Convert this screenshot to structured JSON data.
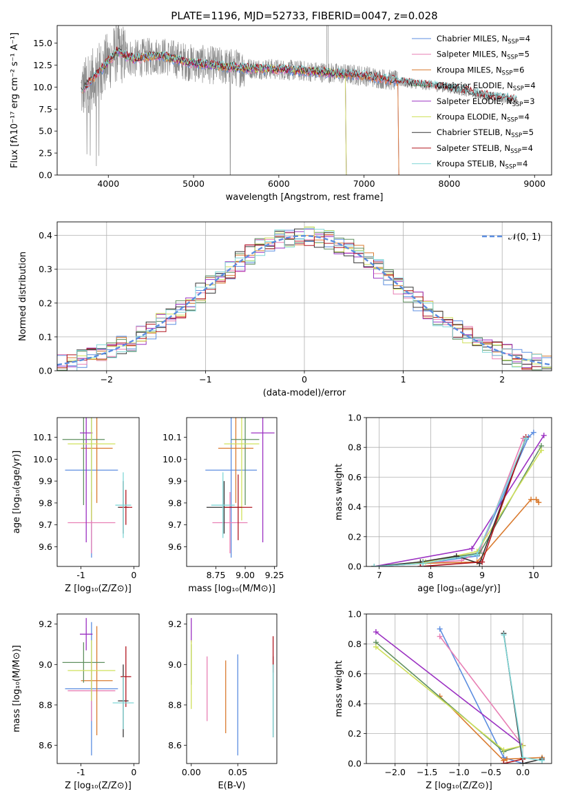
{
  "colors": {
    "Chabrier MILES": "#5b8de0",
    "Salpeter MILES": "#e87fb4",
    "Kroupa MILES": "#d97a2e",
    "Chabrier ELODIE": "#5f8f5f",
    "Salpeter ELODIE": "#9b30c2",
    "Kroupa ELODIE": "#cfe05a",
    "Chabrier STELIB": "#333333",
    "Salpeter STELIB": "#b0141e",
    "Kroupa STELIB": "#7fd6d6"
  },
  "chart_data": [
    {
      "id": "spectrum",
      "type": "line",
      "title": "PLATE=1196, MJD=52733, FIBERID=0047, z=0.028",
      "xlabel": "wavelength [Angstrom, rest frame]",
      "ylabel": "Flux [fλ10⁻¹⁷ erg cm⁻² s⁻¹ A⁻¹]",
      "xlim": [
        3400,
        9200
      ],
      "ylim": [
        0,
        17
      ],
      "xticks": [
        4000,
        5000,
        6000,
        7000,
        8000,
        9000
      ],
      "yticks": [
        0.0,
        2.5,
        5.0,
        7.5,
        10.0,
        12.5,
        15.0
      ],
      "legend": [
        {
          "label": "Chabrier MILES, N",
          "sub": "SSP",
          "eq": "=4",
          "key": "Chabrier MILES"
        },
        {
          "label": "Salpeter MILES, N",
          "sub": "SSP",
          "eq": "=5",
          "key": "Salpeter MILES"
        },
        {
          "label": "Kroupa MILES, N",
          "sub": "SSP",
          "eq": "=6",
          "key": "Kroupa MILES"
        },
        {
          "label": "Chabrier ELODIE, N",
          "sub": "SSP",
          "eq": "=4",
          "key": "Chabrier ELODIE"
        },
        {
          "label": "Salpeter ELODIE, N",
          "sub": "SSP",
          "eq": "=3",
          "key": "Salpeter ELODIE"
        },
        {
          "label": "Kroupa ELODIE, N",
          "sub": "SSP",
          "eq": "=4",
          "key": "Kroupa ELODIE"
        },
        {
          "label": "Chabrier STELIB, N",
          "sub": "SSP",
          "eq": "=5",
          "key": "Chabrier STELIB"
        },
        {
          "label": "Salpeter STELIB, N",
          "sub": "SSP",
          "eq": "=4",
          "key": "Salpeter STELIB"
        },
        {
          "label": "Kroupa STELIB, N",
          "sub": "SSP",
          "eq": "=4",
          "key": "Kroupa STELIB"
        }
      ],
      "data_range": [
        3680,
        8800
      ],
      "model_ranges": {
        "MILES": [
          3700,
          7420
        ],
        "ELODIE": [
          3900,
          6800
        ],
        "STELIB": [
          3680,
          8800
        ]
      },
      "continuum": [
        [
          3680,
          9.5
        ],
        [
          3900,
          11.8
        ],
        [
          4100,
          14.0
        ],
        [
          4300,
          13.2
        ],
        [
          4600,
          13.6
        ],
        [
          5000,
          12.7
        ],
        [
          5500,
          12.2
        ],
        [
          6000,
          12.0
        ],
        [
          6500,
          11.7
        ],
        [
          7000,
          11.3
        ],
        [
          7500,
          10.5
        ],
        [
          8000,
          9.9
        ],
        [
          8500,
          8.9
        ],
        [
          8800,
          8.6
        ]
      ]
    },
    {
      "id": "residuals",
      "type": "line",
      "title": "",
      "xlabel": "(data-model)/error",
      "ylabel": "Normed distribution",
      "xlim": [
        -2.5,
        2.5
      ],
      "ylim": [
        0,
        0.44
      ],
      "xticks": [
        -2,
        -1,
        0,
        1,
        2
      ],
      "xtick_labels": [
        "−2",
        "−1",
        "0",
        "1",
        "2"
      ],
      "yticks": [
        0.0,
        0.1,
        0.2,
        0.3,
        0.4
      ],
      "legend": "𝒩(0, 1)",
      "gaussian": {
        "mu": 0,
        "sigma": 1
      },
      "bin_width": 0.1
    },
    {
      "id": "age-vs-Z",
      "type": "scatter",
      "xlabel": "Z [log₁₀(Z/Z⊙)]",
      "ylabel": "age  [log₁₀(age/yr)]",
      "xlim": [
        -1.45,
        0.1
      ],
      "ylim": [
        9.51,
        10.19
      ],
      "xticks": [
        -1,
        0
      ],
      "yticks": [
        9.6,
        9.7,
        9.8,
        9.9,
        10.0,
        10.1
      ],
      "points": [
        {
          "model": "Chabrier MILES",
          "x": -0.8,
          "y": 9.95,
          "xerr": 0.5,
          "yerr": 0.4
        },
        {
          "model": "Salpeter MILES",
          "x": -0.8,
          "y": 9.71,
          "xerr": 0.45,
          "yerr": 0.14
        },
        {
          "model": "Kroupa MILES",
          "x": -0.7,
          "y": 10.05,
          "xerr": 0.3,
          "yerr": 0.25
        },
        {
          "model": "Chabrier ELODIE",
          "x": -0.95,
          "y": 10.09,
          "xerr": 0.4,
          "yerr": 0.3
        },
        {
          "model": "Salpeter ELODIE",
          "x": -0.9,
          "y": 10.12,
          "xerr": 0.12,
          "yerr": 0.5
        },
        {
          "model": "Kroupa ELODIE",
          "x": -0.8,
          "y": 10.07,
          "xerr": 0.45,
          "yerr": 0.35
        },
        {
          "model": "Chabrier STELIB",
          "x": -0.2,
          "y": 9.78,
          "xerr": 0.1,
          "yerr": 0.12
        },
        {
          "model": "Salpeter STELIB",
          "x": -0.15,
          "y": 9.78,
          "xerr": 0.12,
          "yerr": 0.08
        },
        {
          "model": "Kroupa STELIB",
          "x": -0.2,
          "y": 9.79,
          "xerr": 0.15,
          "yerr": 0.15
        }
      ]
    },
    {
      "id": "age-vs-mass",
      "type": "scatter",
      "xlabel": "mass [log₁₀(M/M⊙)]",
      "ylabel": "",
      "xlim": [
        8.5,
        9.27
      ],
      "ylim": [
        9.51,
        10.19
      ],
      "xticks": [
        8.75,
        9.0,
        9.25
      ],
      "xtick_labels": [
        "8.75",
        "9.00",
        "9.25"
      ],
      "yticks": [
        9.6,
        9.7,
        9.8,
        9.9,
        10.0,
        10.1
      ],
      "points": [
        {
          "model": "Chabrier MILES",
          "x": 8.88,
          "y": 9.95,
          "xerr": 0.22,
          "yerr": 0.4
        },
        {
          "model": "Salpeter MILES",
          "x": 8.87,
          "y": 9.71,
          "xerr": 0.15,
          "yerr": 0.14
        },
        {
          "model": "Kroupa MILES",
          "x": 8.92,
          "y": 10.05,
          "xerr": 0.15,
          "yerr": 0.25
        },
        {
          "model": "Chabrier ELODIE",
          "x": 9.0,
          "y": 10.09,
          "xerr": 0.12,
          "yerr": 0.3
        },
        {
          "model": "Salpeter ELODIE",
          "x": 9.15,
          "y": 10.12,
          "xerr": 0.1,
          "yerr": 0.5
        },
        {
          "model": "Kroupa ELODIE",
          "x": 8.97,
          "y": 10.07,
          "xerr": 0.15,
          "yerr": 0.35
        },
        {
          "model": "Chabrier STELIB",
          "x": 8.82,
          "y": 9.78,
          "xerr": 0.15,
          "yerr": 0.12
        },
        {
          "model": "Salpeter STELIB",
          "x": 8.94,
          "y": 9.78,
          "xerr": 0.12,
          "yerr": 0.15
        },
        {
          "model": "Kroupa STELIB",
          "x": 8.81,
          "y": 9.79,
          "xerr": 0.1,
          "yerr": 0.15
        }
      ]
    },
    {
      "id": "weight-vs-age",
      "type": "line",
      "xlabel": "age  [log₁₀(age/yr)]",
      "ylabel": "mass weight",
      "xlim": [
        6.75,
        10.35
      ],
      "ylim": [
        0,
        1
      ],
      "xticks": [
        7,
        8,
        9,
        10
      ],
      "yticks": [
        0.0,
        0.2,
        0.4,
        0.6,
        0.8,
        1.0
      ],
      "series": [
        {
          "model": "Chabrier MILES",
          "x": [
            6.9,
            7.85,
            8.9,
            9.9,
            10.0
          ],
          "y": [
            0.0,
            0.02,
            0.07,
            0.87,
            0.9
          ]
        },
        {
          "model": "Salpeter MILES",
          "x": [
            6.9,
            7.8,
            8.6,
            8.95,
            9.8
          ],
          "y": [
            0.0,
            0.02,
            0.04,
            0.1,
            0.86
          ]
        },
        {
          "model": "Kroupa MILES",
          "x": [
            6.9,
            7.8,
            8.9,
            9.95,
            10.05,
            10.1
          ],
          "y": [
            0.0,
            0.02,
            0.03,
            0.45,
            0.45,
            0.43
          ]
        },
        {
          "model": "Chabrier ELODIE",
          "x": [
            6.9,
            7.85,
            8.95,
            10.15
          ],
          "y": [
            0.0,
            0.03,
            0.09,
            0.81
          ]
        },
        {
          "model": "Salpeter ELODIE",
          "x": [
            6.9,
            8.8,
            10.2
          ],
          "y": [
            0.0,
            0.12,
            0.88
          ]
        },
        {
          "model": "Kroupa ELODIE",
          "x": [
            6.9,
            7.9,
            8.9,
            10.15
          ],
          "y": [
            0.0,
            0.03,
            0.1,
            0.78
          ]
        },
        {
          "model": "Chabrier STELIB",
          "x": [
            6.9,
            7.8,
            8.5,
            8.95,
            9.85
          ],
          "y": [
            0.0,
            0.03,
            0.07,
            0.02,
            0.86
          ]
        },
        {
          "model": "Salpeter STELIB",
          "x": [
            7.8,
            9.0,
            9.85
          ],
          "y": [
            0.0,
            0.03,
            0.87
          ]
        },
        {
          "model": "Kroupa STELIB",
          "x": [
            6.9,
            7.85,
            8.9,
            9.85
          ],
          "y": [
            0.0,
            0.02,
            0.08,
            0.86
          ]
        }
      ]
    },
    {
      "id": "mass-vs-Z",
      "type": "scatter",
      "xlabel": "Z [log₁₀(Z/Z⊙)]",
      "ylabel": "mass [log₁₀(M/M⊙)]",
      "xlim": [
        -1.45,
        0.1
      ],
      "ylim": [
        8.51,
        9.25
      ],
      "xticks": [
        -1,
        0
      ],
      "yticks": [
        8.6,
        8.8,
        9.0,
        9.2
      ],
      "points": [
        {
          "model": "Chabrier MILES",
          "x": -0.8,
          "y": 8.88,
          "xerr": 0.5,
          "yerr": 0.33
        },
        {
          "model": "Salpeter MILES",
          "x": -0.8,
          "y": 8.87,
          "xerr": 0.45,
          "yerr": 0.15
        },
        {
          "model": "Kroupa MILES",
          "x": -0.7,
          "y": 8.92,
          "xerr": 0.3,
          "yerr": 0.27
        },
        {
          "model": "Chabrier ELODIE",
          "x": -0.95,
          "y": 9.01,
          "xerr": 0.4,
          "yerr": 0.1
        },
        {
          "model": "Salpeter ELODIE",
          "x": -0.9,
          "y": 9.15,
          "xerr": 0.12,
          "yerr": 0.08
        },
        {
          "model": "Kroupa ELODIE",
          "x": -0.8,
          "y": 8.97,
          "xerr": 0.45,
          "yerr": 0.15
        },
        {
          "model": "Chabrier STELIB",
          "x": -0.2,
          "y": 8.82,
          "xerr": 0.1,
          "yerr": 0.18
        },
        {
          "model": "Salpeter STELIB",
          "x": -0.15,
          "y": 8.94,
          "xerr": 0.1,
          "yerr": 0.15
        },
        {
          "model": "Kroupa STELIB",
          "x": -0.2,
          "y": 8.81,
          "xerr": 0.2,
          "yerr": 0.13
        }
      ]
    },
    {
      "id": "mass-vs-EBV",
      "type": "scatter",
      "xlabel": "E(B-V)",
      "ylabel": "",
      "xlim": [
        -0.005,
        0.092
      ],
      "ylim": [
        8.51,
        9.25
      ],
      "xticks": [
        0.0,
        0.05
      ],
      "xtick_labels": [
        "0.00",
        "0.05"
      ],
      "yticks": [
        8.6,
        8.8,
        9.0,
        9.2
      ],
      "points": [
        {
          "model": "Chabrier MILES",
          "x": 0.05,
          "y": 8.8,
          "xerr": 0.0,
          "yerr": 0.25
        },
        {
          "model": "Salpeter MILES",
          "x": 0.017,
          "y": 8.88,
          "xerr": 0.0,
          "yerr": 0.16
        },
        {
          "model": "Kroupa MILES",
          "x": 0.037,
          "y": 8.84,
          "xerr": 0.0,
          "yerr": 0.18
        },
        {
          "model": "Chabrier ELODIE",
          "x": 0.0,
          "y": 9.0,
          "xerr": 0.0,
          "yerr": 0.1
        },
        {
          "model": "Salpeter ELODIE",
          "x": 0.0,
          "y": 9.17,
          "xerr": 0.0,
          "yerr": 0.06
        },
        {
          "model": "Kroupa ELODIE",
          "x": 0.0,
          "y": 8.95,
          "xerr": 0.0,
          "yerr": 0.17
        },
        {
          "model": "Chabrier STELIB",
          "x": 0.088,
          "y": 8.84,
          "xerr": 0.0,
          "yerr": 0.2
        },
        {
          "model": "Salpeter STELIB",
          "x": 0.088,
          "y": 9.05,
          "xerr": 0.0,
          "yerr": 0.09
        },
        {
          "model": "Kroupa STELIB",
          "x": 0.088,
          "y": 8.82,
          "xerr": 0.0,
          "yerr": 0.18
        }
      ]
    },
    {
      "id": "weight-vs-Z",
      "type": "line",
      "xlabel": "Z [log₁₀(Z/Z⊙)]",
      "ylabel": "mass weight",
      "xlim": [
        -2.45,
        0.45
      ],
      "ylim": [
        0,
        1
      ],
      "xticks": [
        -2.0,
        -1.5,
        -1.0,
        -0.5,
        0.0
      ],
      "xtick_labels": [
        "−2.0",
        "−1.5",
        "−1.0",
        "−0.5",
        "0.0"
      ],
      "yticks": [
        0.0,
        0.2,
        0.4,
        0.6,
        0.8,
        1.0
      ],
      "series": [
        {
          "model": "Chabrier MILES",
          "x": [
            -1.3,
            -0.3,
            0.0
          ],
          "y": [
            0.9,
            0.04,
            0.0
          ]
        },
        {
          "model": "Salpeter MILES",
          "x": [
            -1.3,
            0.0
          ],
          "y": [
            0.85,
            0.12
          ]
        },
        {
          "model": "Kroupa MILES",
          "x": [
            -1.3,
            -0.3,
            -0.25,
            0.3
          ],
          "y": [
            0.45,
            0.02,
            0.03,
            0.04
          ]
        },
        {
          "model": "Chabrier ELODIE",
          "x": [
            -2.3,
            -0.3,
            0.0
          ],
          "y": [
            0.81,
            0.08,
            0.12
          ]
        },
        {
          "model": "Salpeter ELODIE",
          "x": [
            -2.3,
            0.0
          ],
          "y": [
            0.88,
            0.12
          ]
        },
        {
          "model": "Kroupa ELODIE",
          "x": [
            -2.3,
            -0.3,
            0.0
          ],
          "y": [
            0.78,
            0.09,
            0.12
          ]
        },
        {
          "model": "Chabrier STELIB",
          "x": [
            -0.3,
            0.0,
            0.3
          ],
          "y": [
            0.87,
            0.0,
            0.03
          ]
        },
        {
          "model": "Salpeter STELIB",
          "x": [
            -0.3,
            0.0
          ],
          "y": [
            0.0,
            0.03
          ]
        },
        {
          "model": "Kroupa STELIB",
          "x": [
            -0.3,
            0.0,
            0.3
          ],
          "y": [
            0.86,
            0.04,
            0.02
          ]
        }
      ]
    }
  ]
}
